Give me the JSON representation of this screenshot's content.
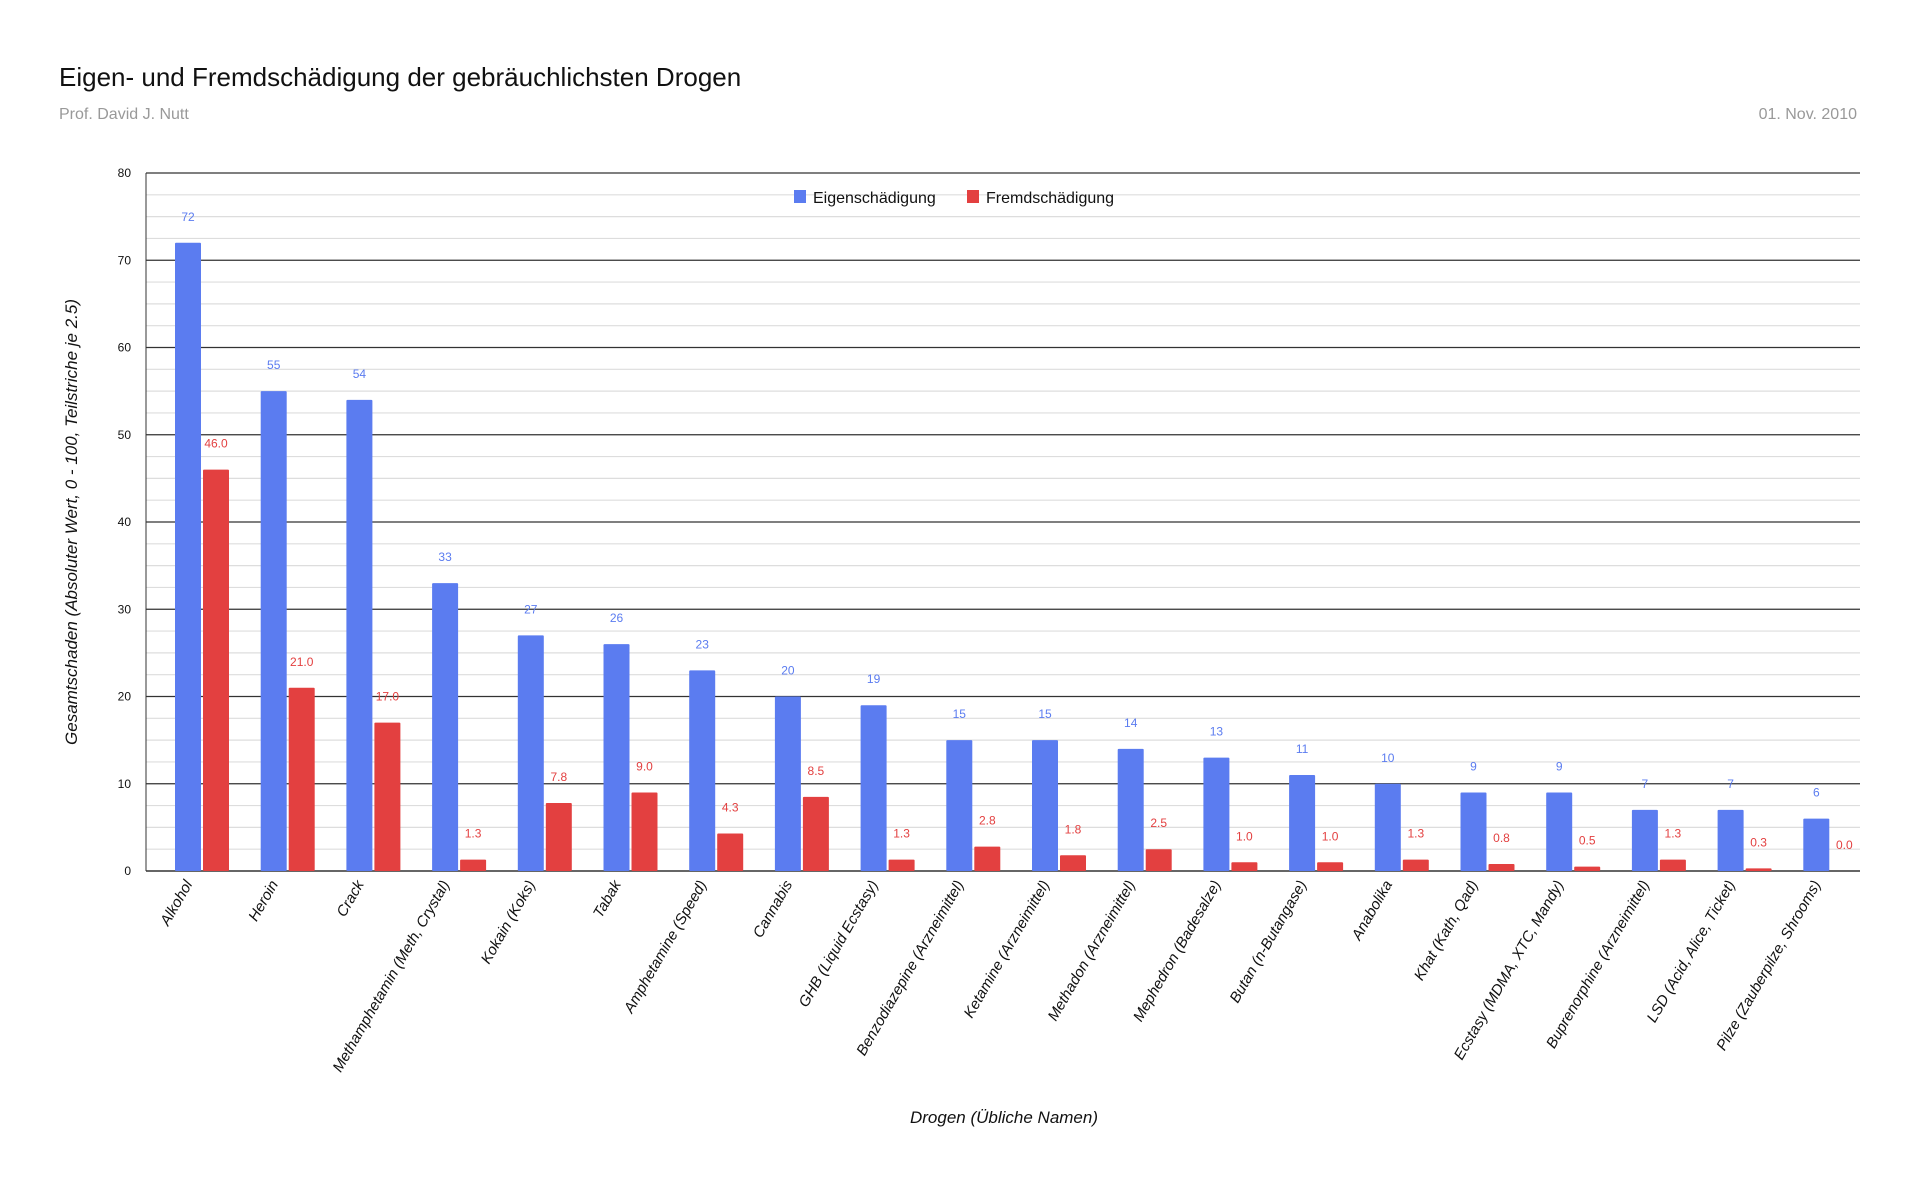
{
  "header": {
    "title": "Eigen- und Fremdschädigung der gebräuchlichsten Drogen",
    "author": "Prof. David J. Nutt",
    "date": "01. Nov. 2010"
  },
  "colors": {
    "eigen": "#5b7cf0",
    "fremd": "#e34040"
  },
  "chart_data": {
    "type": "bar",
    "title": "Eigen- und Fremdschädigung der gebräuchlichsten Drogen",
    "xlabel": "Drogen (Übliche Namen)",
    "ylabel": "Gesamtschaden (Absoluter Wert, 0 - 100, Teilstriche je 2.5)",
    "ylim": [
      0,
      80
    ],
    "yticks": [
      0,
      10,
      20,
      30,
      40,
      50,
      60,
      70,
      80
    ],
    "minor_step": 2.5,
    "grid": true,
    "legend_position": "top-center",
    "categories": [
      "Alkohol",
      "Heroin",
      "Crack",
      "Methamphetamin (Meth, Crystal)",
      "Kokain (Koks)",
      "Tabak",
      "Amphetamine (Speed)",
      "Cannabis",
      "GHB (Liquid Ecstasy)",
      "Benzodiazepine (Arzneimittel)",
      "Ketamine (Arzneimittel)",
      "Methadon (Arzneimittel)",
      "Mephedron (Badesalze)",
      "Butan (n-Butangase)",
      "Anabolika",
      "Khat (Kath, Qad)",
      "Ecstasy (MDMA, XTC, Mandy)",
      "Buprenorphine (Arzneimittel)",
      "LSD (Acid, Alice, Ticket)",
      "Pilze (Zauberpilze, Shrooms)"
    ],
    "series": [
      {
        "name": "Eigenschädigung",
        "values": [
          72,
          55,
          54,
          33,
          27,
          26,
          23,
          20,
          19,
          15,
          15,
          14,
          13,
          11,
          10,
          9,
          9,
          7,
          7,
          6
        ],
        "labels": [
          "72",
          "55",
          "54",
          "33",
          "27",
          "26",
          "23",
          "20",
          "19",
          "15",
          "15",
          "14",
          "13",
          "11",
          "10",
          "9",
          "9",
          "7",
          "7",
          "6"
        ]
      },
      {
        "name": "Fremdschädigung",
        "values": [
          46.0,
          21.0,
          17.0,
          1.3,
          7.8,
          9.0,
          4.3,
          8.5,
          1.3,
          2.8,
          1.8,
          2.5,
          1.0,
          1.0,
          1.3,
          0.8,
          0.5,
          1.3,
          0.3,
          0.0
        ],
        "labels": [
          "46.0",
          "21.0",
          "17.0",
          "1.3",
          "7.8",
          "9.0",
          "4.3",
          "8.5",
          "1.3",
          "2.8",
          "1.8",
          "2.5",
          "1.0",
          "1.0",
          "1.3",
          "0.8",
          "0.5",
          "1.3",
          "0.3",
          "0.0"
        ]
      }
    ]
  }
}
